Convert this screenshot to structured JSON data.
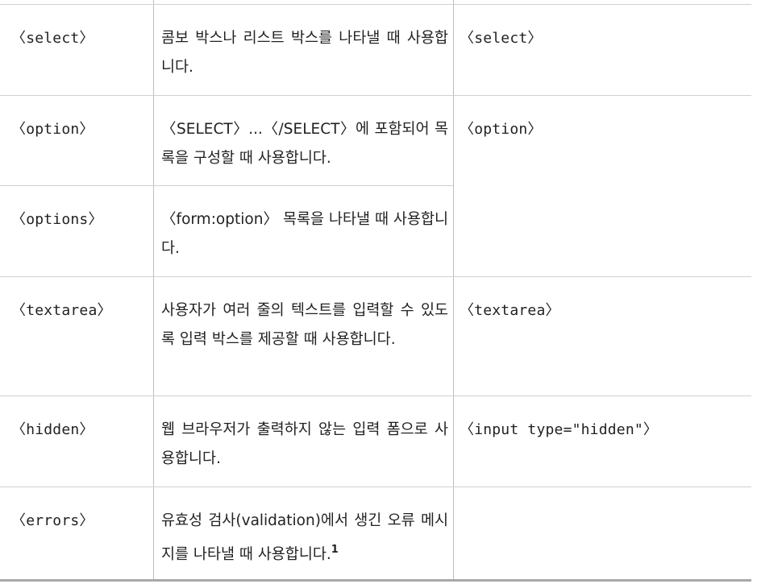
{
  "rows": [
    {
      "tag": "〈select〉",
      "desc": "콤보 박스나 리스트 박스를 나타낼 때 사용합니다.",
      "html": "〈select〉"
    },
    {
      "tag": "〈option〉",
      "desc": "〈SELECT〉...〈/SELECT〉에 포함되어 목록을 구성할 때 사용합니다.",
      "html": "〈option〉"
    },
    {
      "tag": "〈options〉",
      "desc": "〈form:option〉 목록을 나타낼 때 사용합니다.",
      "html": ""
    },
    {
      "tag": "〈textarea〉",
      "desc": "사용자가 여러 줄의 텍스트를 입력할 수 있도록 입력 박스를 제공할 때 사용합니다.",
      "html": "〈textarea〉"
    },
    {
      "tag": "〈hidden〉",
      "desc": "웹 브라우저가 출력하지 않는 입력 폼으로 사용합니다.",
      "html": "〈input type=\"hidden\"〉"
    },
    {
      "tag": "〈errors〉",
      "desc": "유효성 검사(validation)에서 생긴 오류 메시지를 나타낼 때 사용합니다.",
      "html": ""
    }
  ],
  "footnote_marker": "1"
}
